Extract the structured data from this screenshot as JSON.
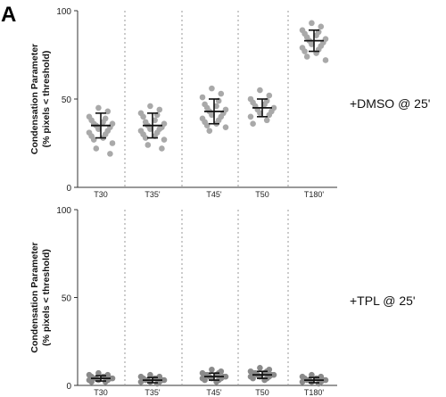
{
  "figure": {
    "panel_letter": "A"
  },
  "colors": {
    "dmso_points": "#a9a9a9",
    "tpl_points": "#8a8a8a",
    "error_bar": "#111111",
    "separator": "#999999",
    "axis": "#333333"
  },
  "chart_data": [
    {
      "type": "scatter",
      "subtype": "dot-plot-with-mean-and-sd",
      "condition_label": "+DMSO @ 25'",
      "ylabel_line1": "Condensation Parameter",
      "ylabel_line2": "(% pixels < threshold)",
      "xlabel": "",
      "ylim": [
        0,
        100
      ],
      "yticks": [
        0,
        50,
        100
      ],
      "grid": false,
      "separators": "dotted-vertical",
      "categories": [
        "T30",
        "T35'",
        "T45'",
        "T50",
        "T180'"
      ],
      "mean": [
        35,
        35,
        43,
        45,
        83
      ],
      "sd": [
        7,
        7,
        7,
        5,
        6
      ],
      "points": [
        [
          45,
          43,
          40,
          39,
          38,
          37,
          36,
          36,
          35,
          34,
          33,
          32,
          31,
          30,
          29,
          28,
          27,
          25,
          22,
          19
        ],
        [
          46,
          44,
          42,
          41,
          40,
          38,
          37,
          36,
          35,
          34,
          33,
          33,
          32,
          31,
          30,
          29,
          28,
          27,
          24,
          22
        ],
        [
          56,
          53,
          51,
          49,
          47,
          46,
          45,
          44,
          43,
          42,
          41,
          40,
          39,
          38,
          37,
          36,
          35,
          34,
          32
        ],
        [
          55,
          52,
          50,
          49,
          48,
          47,
          46,
          45,
          44,
          43,
          42,
          41,
          40,
          38,
          36
        ],
        [
          93,
          91,
          89,
          88,
          87,
          86,
          85,
          84,
          83,
          82,
          81,
          80,
          79,
          78,
          77,
          76,
          74,
          72
        ]
      ]
    },
    {
      "type": "scatter",
      "subtype": "dot-plot-with-mean-and-sd",
      "condition_label": "+TPL @ 25'",
      "ylabel_line1": "Condensation Parameter",
      "ylabel_line2": "(% pixels < threshold)",
      "xlabel": "",
      "ylim": [
        0,
        100
      ],
      "yticks": [
        0,
        50,
        100
      ],
      "grid": false,
      "separators": "dotted-vertical",
      "categories": [
        "T30",
        "T35'",
        "T45'",
        "T50",
        "T180'"
      ],
      "mean": [
        4,
        3,
        5,
        6,
        3
      ],
      "sd": [
        1.5,
        1.5,
        2,
        2,
        1.5
      ],
      "points": [
        [
          7,
          6,
          6,
          5,
          5,
          5,
          4,
          4,
          4,
          4,
          3,
          3,
          3,
          2,
          2
        ],
        [
          6,
          5,
          5,
          4,
          4,
          4,
          3,
          3,
          3,
          3,
          2,
          2,
          2,
          1
        ],
        [
          9,
          8,
          7,
          7,
          6,
          6,
          6,
          5,
          5,
          5,
          4,
          4,
          4,
          3,
          3,
          2
        ],
        [
          10,
          9,
          8,
          8,
          7,
          7,
          7,
          6,
          6,
          6,
          5,
          5,
          5,
          4,
          4,
          3
        ],
        [
          6,
          5,
          5,
          4,
          4,
          4,
          3,
          3,
          3,
          3,
          2,
          2,
          2,
          1
        ]
      ]
    }
  ]
}
